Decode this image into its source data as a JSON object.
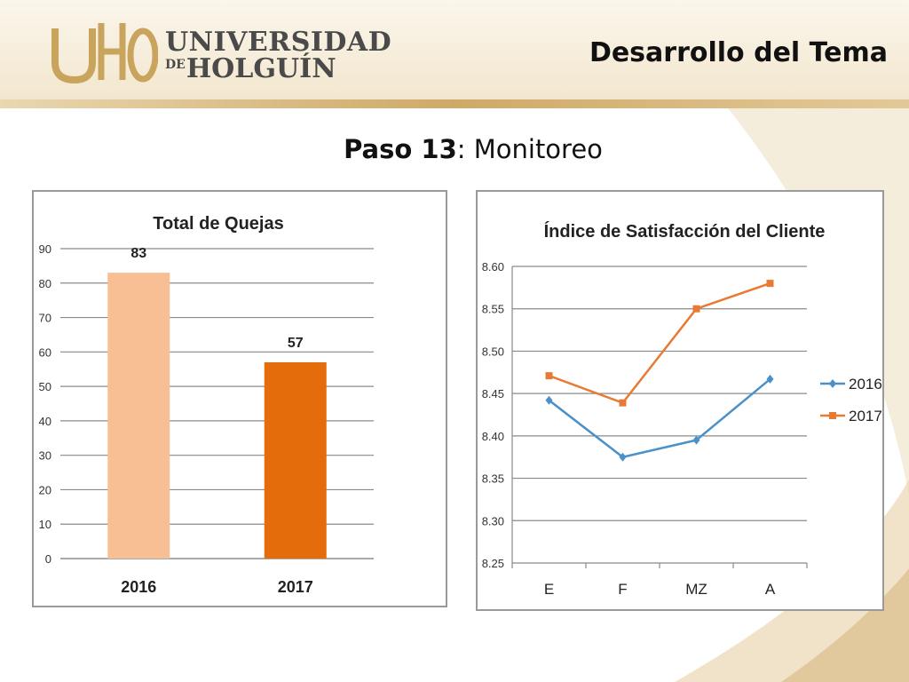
{
  "header": {
    "logo_mark": "UHO",
    "logo_line1": "UNIVERSIDAD",
    "logo_line2_small": "DE",
    "logo_line2": "HOLGUÍN",
    "slide_title": "Desarrollo del Tema"
  },
  "subtitle": {
    "bold": "Paso 13",
    "rest": ": Monitoreo"
  },
  "colors": {
    "bar_2016": "#f8bf94",
    "bar_2017": "#e46c0a",
    "line_2016": "#4a90c9",
    "line_2017": "#e87a34"
  },
  "chart_data": [
    {
      "type": "bar",
      "title": "Total de Quejas",
      "categories": [
        "2016",
        "2017"
      ],
      "values": [
        83,
        57
      ],
      "data_labels": [
        "83",
        "57"
      ],
      "xlabel": "",
      "ylabel": "",
      "ylim": [
        0,
        90
      ],
      "yticks": [
        "0",
        "10",
        "20",
        "30",
        "40",
        "50",
        "60",
        "70",
        "80",
        "90"
      ],
      "grid": true,
      "legend": "none"
    },
    {
      "type": "line",
      "title": "Índice de Satisfacción del Cliente",
      "categories": [
        "E",
        "F",
        "MZ",
        "A"
      ],
      "series": [
        {
          "name": "2016",
          "values": [
            8.442,
            8.375,
            8.395,
            8.467
          ]
        },
        {
          "name": "2017",
          "values": [
            8.471,
            8.439,
            8.55,
            8.58
          ]
        }
      ],
      "xlabel": "",
      "ylabel": "",
      "ylim": [
        8.25,
        8.6
      ],
      "yticks": [
        "8.25",
        "8.30",
        "8.35",
        "8.40",
        "8.45",
        "8.50",
        "8.55",
        "8.60"
      ],
      "grid": true,
      "legend": "right"
    }
  ]
}
